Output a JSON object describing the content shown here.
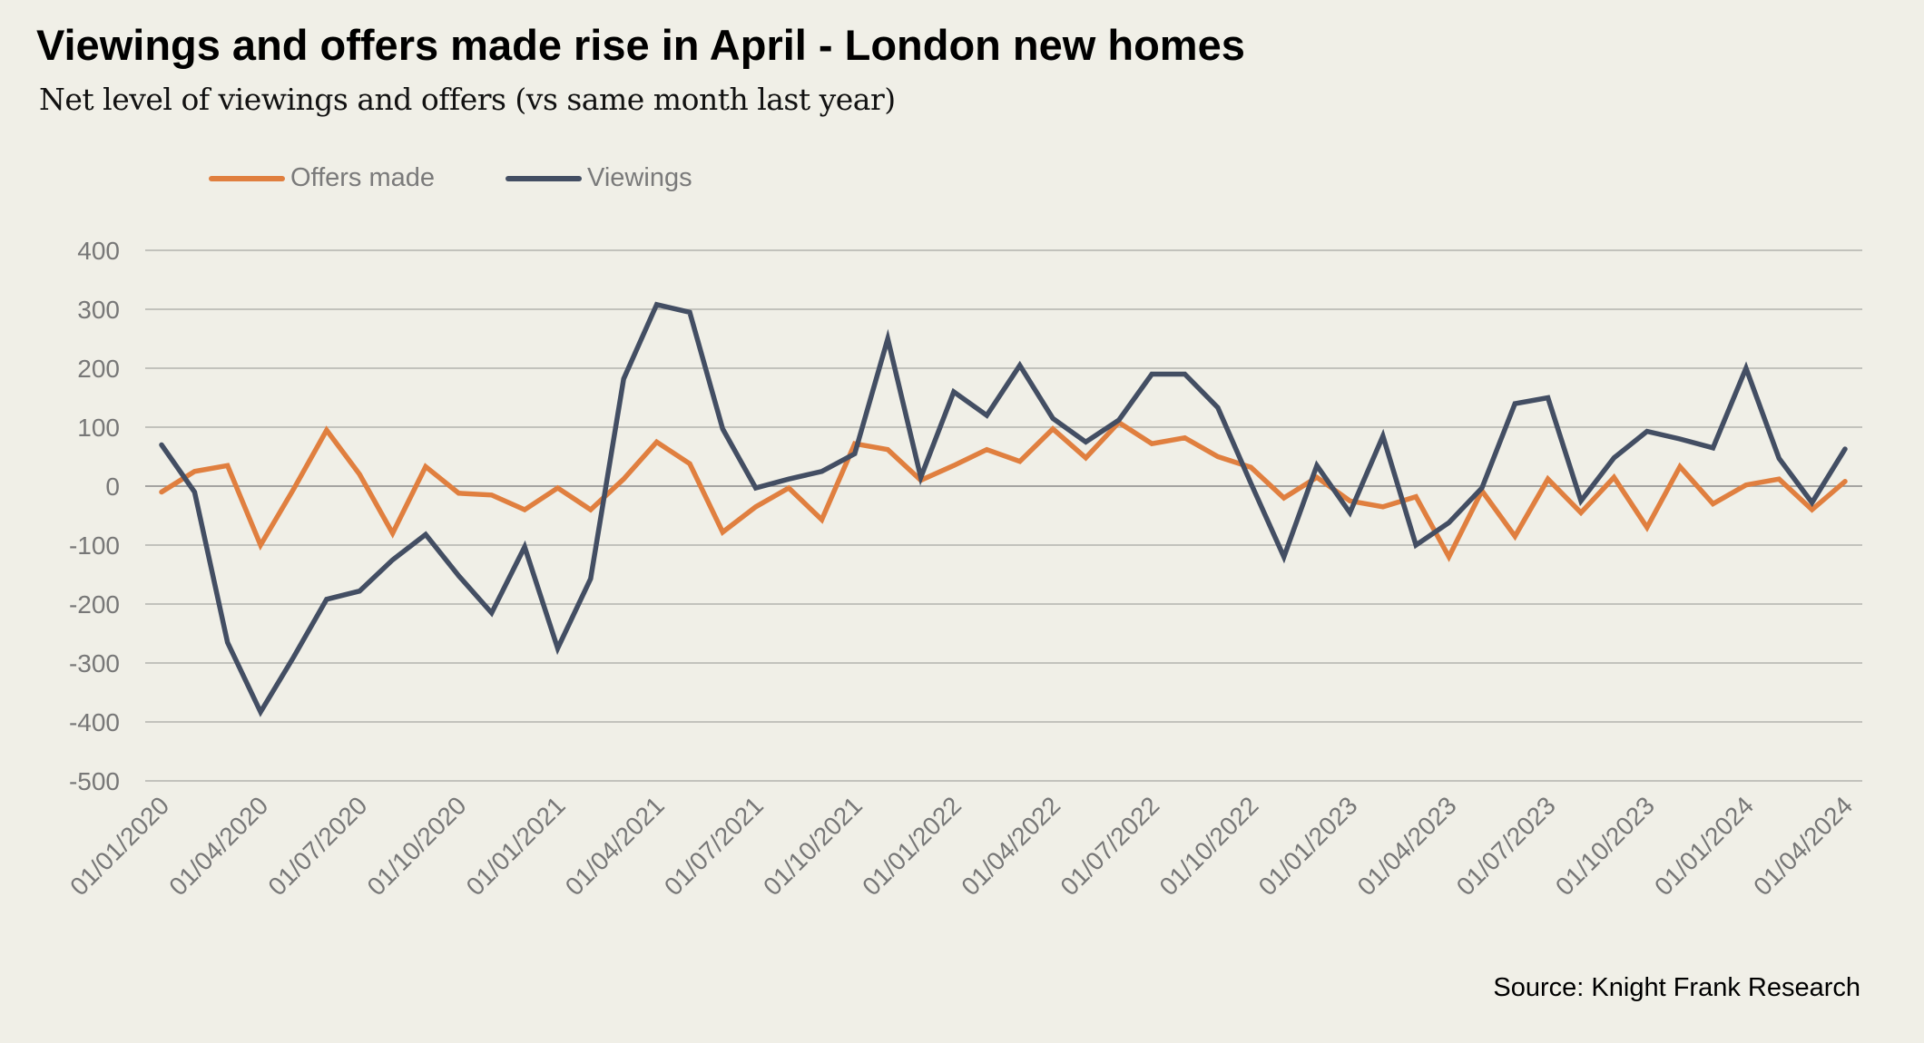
{
  "chart_data": {
    "type": "line",
    "title": "Viewings and offers made rise in April - London new homes",
    "subtitle": "Net level of viewings and offers (vs same month last year)",
    "xlabel": "",
    "ylabel": "",
    "ylim": [
      -500,
      400
    ],
    "yticks": [
      400,
      300,
      200,
      100,
      0,
      -100,
      -200,
      -300,
      -400,
      -500
    ],
    "grid": true,
    "legend_position": "top-left",
    "x": [
      "01/01/2020",
      "01/02/2020",
      "01/03/2020",
      "01/04/2020",
      "01/05/2020",
      "01/06/2020",
      "01/07/2020",
      "01/08/2020",
      "01/09/2020",
      "01/10/2020",
      "01/11/2020",
      "01/12/2020",
      "01/01/2021",
      "01/02/2021",
      "01/03/2021",
      "01/04/2021",
      "01/05/2021",
      "01/06/2021",
      "01/07/2021",
      "01/08/2021",
      "01/09/2021",
      "01/10/2021",
      "01/11/2021",
      "01/12/2021",
      "01/01/2022",
      "01/02/2022",
      "01/03/2022",
      "01/04/2022",
      "01/05/2022",
      "01/06/2022",
      "01/07/2022",
      "01/08/2022",
      "01/09/2022",
      "01/10/2022",
      "01/11/2022",
      "01/12/2022",
      "01/01/2023",
      "01/02/2023",
      "01/03/2023",
      "01/04/2023",
      "01/05/2023",
      "01/06/2023",
      "01/07/2023",
      "01/08/2023",
      "01/09/2023",
      "01/10/2023",
      "01/11/2023",
      "01/12/2023",
      "01/01/2024",
      "01/02/2024",
      "01/03/2024",
      "01/04/2024"
    ],
    "xtick_labels": [
      "01/01/2020",
      "01/04/2020",
      "01/07/2020",
      "01/10/2020",
      "01/01/2021",
      "01/04/2021",
      "01/07/2021",
      "01/10/2021",
      "01/01/2022",
      "01/04/2022",
      "01/07/2022",
      "01/10/2022",
      "01/01/2023",
      "01/04/2023",
      "01/07/2023",
      "01/10/2023",
      "01/01/2024",
      "01/04/2024"
    ],
    "series": [
      {
        "name": "Offers made",
        "color": "#e07f3f",
        "values": [
          -10,
          25,
          35,
          -100,
          -5,
          95,
          20,
          -80,
          33,
          -12,
          -15,
          -40,
          -3,
          -40,
          12,
          75,
          38,
          -78,
          -35,
          -3,
          -57,
          72,
          62,
          10,
          35,
          62,
          42,
          97,
          48,
          108,
          72,
          82,
          50,
          32,
          -20,
          15,
          -25,
          -35,
          -18,
          -120,
          -8,
          -85,
          12,
          -45,
          15,
          -70,
          33,
          -30,
          2,
          12,
          -40,
          8
        ]
      },
      {
        "name": "Viewings",
        "color": "#434e63",
        "values": [
          70,
          -10,
          -265,
          -383,
          -290,
          -192,
          -178,
          -125,
          -82,
          -152,
          -215,
          -103,
          -275,
          -157,
          182,
          308,
          295,
          97,
          -3,
          12,
          25,
          55,
          250,
          15,
          160,
          120,
          205,
          115,
          75,
          112,
          190,
          190,
          133,
          5,
          -120,
          35,
          -45,
          85,
          -100,
          -62,
          -3,
          140,
          150,
          -25,
          48,
          93,
          80,
          65,
          200,
          47,
          -28,
          63
        ]
      }
    ],
    "source": "Source: Knight Frank Research"
  }
}
